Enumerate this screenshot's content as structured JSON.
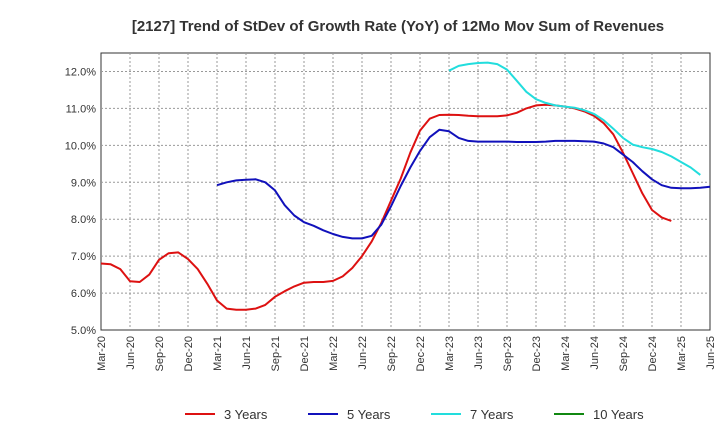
{
  "chart_data": {
    "type": "line",
    "title": "[2127]  Trend of StDev of Growth Rate (YoY) of 12Mo Mov Sum of Revenues",
    "xlabel": "",
    "ylabel": "",
    "ylim": [
      5.0,
      12.5
    ],
    "y_ticks": [
      5.0,
      6.0,
      7.0,
      8.0,
      9.0,
      10.0,
      11.0,
      12.0
    ],
    "y_tick_labels": [
      "5.0%",
      "6.0%",
      "7.0%",
      "8.0%",
      "9.0%",
      "10.0%",
      "11.0%",
      "12.0%"
    ],
    "x_start": "Mar-20",
    "x_tick_labels": [
      "Mar-20",
      "Jun-20",
      "Sep-20",
      "Dec-20",
      "Mar-21",
      "Jun-21",
      "Sep-21",
      "Dec-21",
      "Mar-22",
      "Jun-22",
      "Sep-22",
      "Dec-22",
      "Mar-23",
      "Jun-23",
      "Sep-23",
      "Dec-23",
      "Mar-24",
      "Jun-24",
      "Sep-24",
      "Dec-24",
      "Mar-25",
      "Jun-25"
    ],
    "grid": true,
    "legend_position": "bottom",
    "series": [
      {
        "name": "3 Years",
        "color": "#dd1111",
        "start_index": 0,
        "values": [
          6.8,
          6.78,
          6.65,
          6.32,
          6.3,
          6.5,
          6.9,
          7.08,
          7.1,
          6.92,
          6.65,
          6.25,
          5.8,
          5.58,
          5.55,
          5.55,
          5.58,
          5.68,
          5.9,
          6.05,
          6.18,
          6.28,
          6.3,
          6.3,
          6.33,
          6.45,
          6.68,
          7.0,
          7.4,
          7.9,
          8.5,
          9.1,
          9.8,
          10.4,
          10.72,
          10.82,
          10.83,
          10.82,
          10.8,
          10.79,
          10.79,
          10.79,
          10.81,
          10.88,
          11.0,
          11.08,
          11.1,
          11.08,
          11.05,
          11.0,
          10.92,
          10.8,
          10.6,
          10.3,
          9.8,
          9.25,
          8.7,
          8.25,
          8.05,
          7.95
        ]
      },
      {
        "name": "5 Years",
        "color": "#1111bb",
        "start_index": 12,
        "values": [
          8.92,
          9.0,
          9.05,
          9.07,
          9.08,
          9.0,
          8.78,
          8.38,
          8.1,
          7.92,
          7.82,
          7.7,
          7.6,
          7.52,
          7.48,
          7.48,
          7.55,
          7.85,
          8.35,
          8.9,
          9.4,
          9.85,
          10.22,
          10.42,
          10.38,
          10.2,
          10.12,
          10.1,
          10.1,
          10.1,
          10.1,
          10.09,
          10.09,
          10.09,
          10.1,
          10.12,
          10.12,
          10.12,
          10.11,
          10.1,
          10.05,
          9.95,
          9.75,
          9.55,
          9.3,
          9.08,
          8.92,
          8.85,
          8.84,
          8.84,
          8.85,
          8.88
        ]
      },
      {
        "name": "7 Years",
        "color": "#22dddd",
        "start_index": 36,
        "values": [
          12.02,
          12.15,
          12.2,
          12.23,
          12.24,
          12.2,
          12.05,
          11.75,
          11.45,
          11.25,
          11.15,
          11.08,
          11.05,
          11.02,
          10.95,
          10.85,
          10.68,
          10.45,
          10.2,
          10.02,
          9.95,
          9.9,
          9.82,
          9.7,
          9.55,
          9.4,
          9.2
        ]
      },
      {
        "name": "10 Years",
        "color": "#118811",
        "start_index": 0,
        "values": []
      }
    ]
  }
}
